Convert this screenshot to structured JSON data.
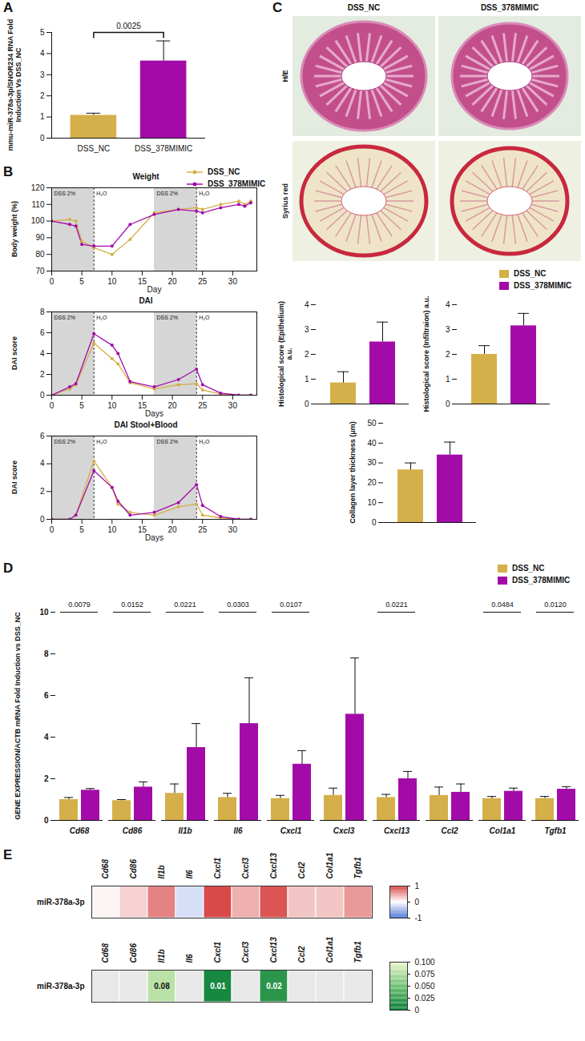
{
  "chart_data": [
    {
      "type": "bar",
      "panel": "A",
      "categories": [
        "DSS_NC",
        "DSS_378MIMIC"
      ],
      "values": [
        1.08,
        3.65
      ],
      "errors": [
        0.1,
        0.95
      ],
      "colors": [
        "#D4AF4A",
        "#A30BA8"
      ],
      "ylabel": "mmu-miR-378a-3p/SNOR234 RNA Fold Induction Vs DSS_NC",
      "ylim": [
        0,
        5
      ],
      "yticks": [
        0,
        1,
        2,
        3,
        4,
        5
      ],
      "p_value": "0.0025"
    },
    {
      "type": "line",
      "panel": "B",
      "legend": "top-right",
      "charts": [
        {
          "title": "Weight",
          "xlabel": "Day",
          "ylabel": "Body weight (%)",
          "x": [
            0,
            3,
            4,
            5,
            7,
            10,
            13,
            17,
            21,
            24,
            25,
            28,
            31,
            32,
            33
          ],
          "xlim": [
            0,
            34
          ],
          "xticks": [
            0,
            5,
            10,
            15,
            20,
            25,
            30
          ],
          "ylim": [
            70,
            120
          ],
          "yticks": [
            70,
            80,
            90,
            100,
            110,
            120
          ],
          "shaded_periods": [
            {
              "x1": 0,
              "x2": 7,
              "label": "DSS 2%"
            },
            {
              "x1": 17,
              "x2": 24,
              "label": "DSS 2%"
            }
          ],
          "unshaded_periods": [
            {
              "x1": 7,
              "x2": 17,
              "label": "H₂O"
            },
            {
              "x1": 24,
              "x2": 34,
              "label": "H₂O"
            }
          ],
          "series": [
            {
              "name": "DSS_NC",
              "color": "#D4AF4A",
              "marker": "circle",
              "values": [
                100,
                101,
                100,
                88,
                84,
                80,
                89,
                105,
                107,
                108,
                107,
                110,
                112,
                110,
                112
              ]
            },
            {
              "name": "DSS_378MIMIC",
              "color": "#A30BA8",
              "marker": "circle",
              "values": [
                100,
                98,
                97,
                86,
                85,
                85,
                98,
                104,
                107,
                106,
                105,
                108,
                110,
                109,
                111
              ]
            }
          ]
        },
        {
          "title": "DAI",
          "xlabel": "Days",
          "ylabel": "DAI score",
          "x": [
            0,
            3,
            4,
            7,
            10,
            11,
            13,
            17,
            21,
            24,
            25,
            28,
            31,
            33
          ],
          "xlim": [
            0,
            34
          ],
          "xticks": [
            0,
            5,
            10,
            15,
            20,
            25,
            30
          ],
          "ylim": [
            0,
            8
          ],
          "yticks": [
            0,
            2,
            4,
            6,
            8
          ],
          "shaded_periods": [
            {
              "x1": 0,
              "x2": 7,
              "label": "DSS 2%"
            },
            {
              "x1": 17,
              "x2": 24,
              "label": "DSS 2%"
            }
          ],
          "unshaded_periods": [
            {
              "x1": 7,
              "x2": 17,
              "label": "H₂O"
            },
            {
              "x1": 24,
              "x2": 34,
              "label": "H₂O"
            }
          ],
          "series": [
            {
              "name": "DSS_NC",
              "color": "#D4AF4A",
              "marker": "circle",
              "values": [
                0,
                0.6,
                1.0,
                5.0,
                3.5,
                3.0,
                1.2,
                0.6,
                1.0,
                1.1,
                0.5,
                0.1,
                0,
                0
              ]
            },
            {
              "name": "DSS_378MIMIC",
              "color": "#A30BA8",
              "marker": "circle",
              "values": [
                0,
                0.8,
                1.1,
                5.9,
                4.8,
                4.0,
                1.3,
                0.8,
                1.5,
                2.5,
                1.0,
                0.2,
                0,
                0
              ]
            }
          ]
        },
        {
          "title": "DAI Stool+Blood",
          "xlabel": "Days",
          "ylabel": "DAI score",
          "x": [
            0,
            3,
            4,
            7,
            10,
            11,
            13,
            17,
            21,
            24,
            25,
            28,
            31,
            33
          ],
          "xlim": [
            0,
            34
          ],
          "xticks": [
            0,
            5,
            10,
            15,
            20,
            25,
            30
          ],
          "ylim": [
            0,
            6
          ],
          "yticks": [
            0,
            2,
            4,
            6
          ],
          "shaded_periods": [
            {
              "x1": 0,
              "x2": 7,
              "label": "DSS 2%"
            },
            {
              "x1": 17,
              "x2": 24,
              "label": "DSS 2%"
            }
          ],
          "unshaded_periods": [
            {
              "x1": 7,
              "x2": 17,
              "label": "H₂O"
            },
            {
              "x1": 24,
              "x2": 34,
              "label": "H₂O"
            }
          ],
          "series": [
            {
              "name": "DSS_NC",
              "color": "#D4AF4A",
              "marker": "circle",
              "values": [
                0,
                0,
                0.3,
                4.2,
                2.3,
                1.1,
                0.5,
                0.3,
                0.9,
                1.1,
                0.3,
                0.1,
                0,
                0
              ]
            },
            {
              "name": "DSS_378MIMIC",
              "color": "#A30BA8",
              "marker": "circle",
              "values": [
                0,
                0,
                0.3,
                3.5,
                2.3,
                1.3,
                0.3,
                0.5,
                1.2,
                2.5,
                1.0,
                0.2,
                0,
                0
              ]
            }
          ]
        }
      ]
    },
    {
      "type": "image_grid",
      "panel": "C",
      "columns": [
        "DSS_NC",
        "DSS_378MIMIC"
      ],
      "rows": [
        "H/E",
        "Syrius red"
      ]
    },
    {
      "type": "bar",
      "categories": [
        "DSS_NC",
        "DSS_378MIMIC"
      ],
      "colors": [
        "#D4AF4A",
        "#A30BA8"
      ],
      "legend": "top-right",
      "charts": [
        {
          "ylabel": "Histological score (Epithelium) a.u.",
          "values": [
            0.85,
            2.5
          ],
          "errors": [
            0.45,
            0.8
          ],
          "ylim": [
            0,
            4
          ],
          "yticks": [
            0,
            1,
            2,
            3,
            4
          ]
        },
        {
          "ylabel": "Histological score (Infiltraion) a.u.",
          "values": [
            2.0,
            3.15
          ],
          "errors": [
            0.35,
            0.5
          ],
          "ylim": [
            0,
            4
          ],
          "yticks": [
            0,
            1,
            2,
            3,
            4
          ]
        },
        {
          "ylabel": "Collagen layer thickness (μm)",
          "values": [
            26.5,
            34
          ],
          "errors": [
            3.5,
            6.5
          ],
          "ylim": [
            0,
            50
          ],
          "yticks": [
            0,
            10,
            20,
            30,
            40,
            50
          ]
        }
      ]
    },
    {
      "type": "bar",
      "panel": "D",
      "categories": [
        "Cd68",
        "Cd86",
        "Il1b",
        "Il6",
        "Cxcl1",
        "Cxcl3",
        "Cxcl13",
        "Ccl2",
        "Col1a1",
        "Tgfb1"
      ],
      "ylabel": "GENE EXPRESSION/ACTB mRNA Fold Induction vs DSS_NC",
      "ylim": [
        0,
        10
      ],
      "yticks": [
        0,
        2,
        4,
        6,
        8,
        10
      ],
      "legend": "top-right",
      "p_values": [
        "0.0079",
        "0.0152",
        "0.0221",
        "0.0303",
        "0.0107",
        null,
        "0.0221",
        null,
        "0.0484",
        "0.0120"
      ],
      "series": [
        {
          "name": "DSS_NC",
          "color": "#D4AF4A",
          "values": [
            1.0,
            0.95,
            1.3,
            1.1,
            1.05,
            1.2,
            1.1,
            1.2,
            1.05,
            1.05
          ],
          "errors": [
            0.1,
            0.05,
            0.45,
            0.2,
            0.15,
            0.35,
            0.15,
            0.4,
            0.1,
            0.1
          ]
        },
        {
          "name": "DSS_378MIMIC",
          "color": "#A30BA8",
          "values": [
            1.45,
            1.6,
            3.5,
            4.65,
            2.7,
            5.1,
            2.0,
            1.35,
            1.4,
            1.5
          ],
          "errors": [
            0.08,
            0.25,
            1.15,
            2.2,
            0.65,
            2.7,
            0.35,
            0.4,
            0.15,
            0.12
          ]
        }
      ]
    },
    {
      "type": "heatmap",
      "panel": "E",
      "charts": [
        {
          "row": "miR-378a-3p",
          "columns": [
            "Cd68",
            "Cd86",
            "Il1b",
            "Il6",
            "Cxcl1",
            "Cxcl3",
            "Cxcl13",
            "Ccl2",
            "Col1a1",
            "Tgfb1"
          ],
          "values": [
            0.05,
            0.2,
            0.55,
            -0.2,
            0.8,
            0.35,
            0.75,
            0.25,
            0.25,
            0.45
          ],
          "data_labels": false,
          "colorbar_range": [
            -1,
            1
          ],
          "colorbar_ticks": [
            -1,
            0,
            1
          ]
        },
        {
          "row": "miR-378a-3p",
          "columns": [
            "Cd68",
            "Cd86",
            "Il1b",
            "Il6",
            "Cxcl1",
            "Cxcl3",
            "Cxcl13",
            "Ccl2",
            "Col1a1",
            "Tgfb1"
          ],
          "values": [
            null,
            null,
            0.08,
            null,
            0.01,
            null,
            0.02,
            null,
            null,
            null
          ],
          "data_labels": true,
          "colorbar_range": [
            0,
            0.1
          ],
          "colorbar_ticks": [
            0,
            0.025,
            {
              "value": 0.05,
              "label": "0.050"
            },
            0.075,
            {
              "value": 0.1,
              "label": "0.100"
            }
          ]
        }
      ]
    }
  ]
}
